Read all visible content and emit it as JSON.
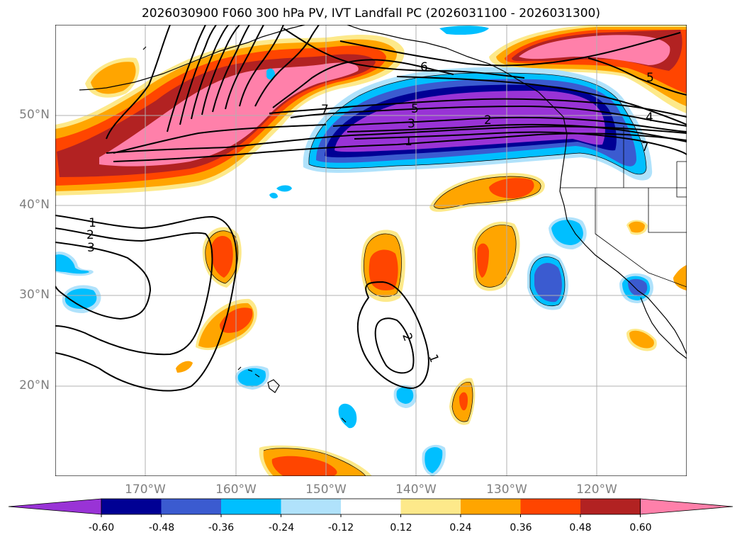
{
  "title": "2026030900 F060 300 hPa PV, IVT Landfall PC (2026031100 - 2026031300)",
  "map": {
    "lat_labels": [
      "50°N",
      "40°N",
      "30°N",
      "20°N"
    ],
    "lon_labels": [
      "170°W",
      "160°W",
      "150°W",
      "140°W",
      "130°W",
      "120°W"
    ],
    "lon_range": [
      -180,
      -110
    ],
    "lat_range": [
      10,
      60
    ]
  },
  "colorbar": {
    "labels": [
      "-0.60",
      "-0.48",
      "-0.36",
      "-0.24",
      "-0.12",
      "0.12",
      "0.24",
      "0.36",
      "0.48",
      "0.60"
    ],
    "colors": [
      "#9933d6",
      "#000094",
      "#3b5bd0",
      "#00bfff",
      "#b0e2fb",
      "#ffffff",
      "#fde98a",
      "#ffa500",
      "#ff4500",
      "#b22222",
      "#ff80aa"
    ]
  },
  "contour_labels": {
    "north": [
      "6",
      "7",
      "5",
      "3",
      "2",
      "1",
      "5",
      "4",
      "7"
    ],
    "west": [
      "1",
      "2",
      "3"
    ],
    "south": [
      "2",
      "1"
    ]
  },
  "colors": {
    "coast": "#000000",
    "grid": "#b0b0b0",
    "axis_text": "#7f7f7f"
  }
}
